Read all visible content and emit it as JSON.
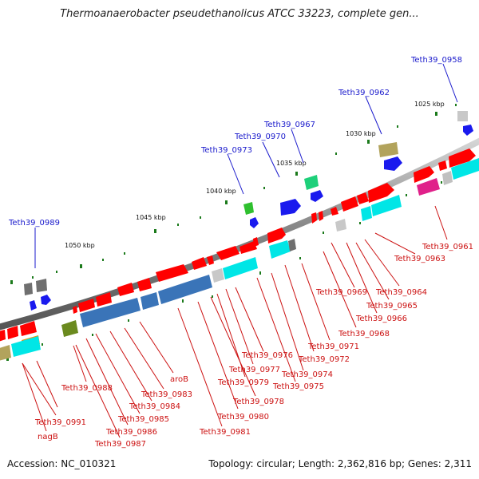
{
  "title": "Thermoanaerobacter pseudethanolicus ATCC 33223, complete gen...",
  "footer": {
    "accession": "Accession: NC_010321",
    "topology": "Topology: circular; Length: 2,362,816 bp; Genes: 2,311"
  },
  "scale_labels": [
    "1025 kbp",
    "1030 kbp",
    "1035 kbp",
    "1040 kbp",
    "1045 kbp",
    "1050 kbp"
  ],
  "outer_gene_labels": [
    "Teth39_0958",
    "Teth39_0962",
    "Teth39_0967",
    "Teth39_0970",
    "Teth39_0973",
    "Teth39_0989"
  ],
  "inner_gene_labels": [
    "Teth39_0961",
    "Teth39_0963",
    "Teth39_0964",
    "Teth39_0965",
    "Teth39_0966",
    "Teth39_0969",
    "Teth39_0968",
    "Teth39_0971",
    "Teth39_0972",
    "Teth39_0974",
    "Teth39_0975",
    "Teth39_0976",
    "Teth39_0977",
    "Teth39_0979",
    "Teth39_0978",
    "Teth39_0980",
    "Teth39_0981",
    "aroB",
    "Teth39_0983",
    "Teth39_0984",
    "Teth39_0985",
    "Teth39_0986",
    "Teth39_0987",
    "Teth39_0988",
    "Teth39_0991",
    "nagB"
  ],
  "colors": {
    "label_outer": "#1a1acc",
    "label_inner": "#cc1111",
    "gene_red": "#ff0000",
    "backbone": "#8a8a8a",
    "tick_green": "#1b7a1b"
  }
}
